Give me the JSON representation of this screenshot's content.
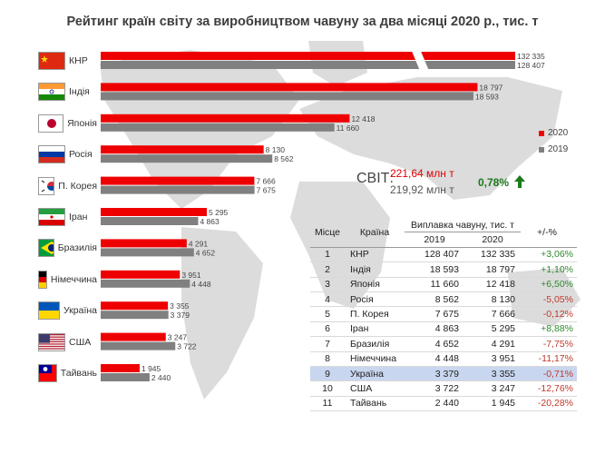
{
  "chart_data": {
    "type": "bar",
    "title": "Рейтинг країн світу за виробництвом чавуну за два місяці 2020 р., тис. т",
    "categories": [
      "КНР",
      "Індія",
      "Японія",
      "Росія",
      "П. Корея",
      "Іран",
      "Бразилія",
      "Німеччина",
      "Україна",
      "США",
      "Тайвань"
    ],
    "series": [
      {
        "name": "2020",
        "color": "#ee0000",
        "values": [
          132335,
          18797,
          12418,
          8130,
          7666,
          5295,
          4291,
          3951,
          3355,
          3247,
          1945
        ]
      },
      {
        "name": "2019",
        "color": "#808080",
        "values": [
          128407,
          18593,
          11660,
          8562,
          7675,
          4863,
          4652,
          4448,
          3379,
          3722,
          2440
        ]
      }
    ],
    "value_labels_2020": [
      "132 335",
      "18 797",
      "12 418",
      "8 130",
      "7 666",
      "5 295",
      "4 291",
      "3 951",
      "3 355",
      "3 247",
      "1 945"
    ],
    "value_labels_2019": [
      "128 407",
      "18 593",
      "11 660",
      "8 562",
      "7 675",
      "4 863",
      "4 652",
      "4 448",
      "3 379",
      "3 722",
      "2 440"
    ],
    "axis_break": true,
    "legend_position": "right",
    "flags": [
      "china-flag-icon",
      "india-flag-icon",
      "japan-flag-icon",
      "russia-flag-icon",
      "korea-flag-icon",
      "iran-flag-icon",
      "brazil-flag-icon",
      "germany-flag-icon",
      "ukraine-flag-icon",
      "usa-flag-icon",
      "taiwan-flag-icon"
    ]
  },
  "world": {
    "label": "СВІТ:",
    "value_2020": "221,64 млн т",
    "value_2019": "219,92 млн т",
    "change": "0,78%"
  },
  "table": {
    "headers": {
      "rank": "Місце",
      "country": "Країна",
      "output": "Виплавка чавуну, тис. т",
      "y2019": "2019",
      "y2020": "2020",
      "change": "+/-%"
    },
    "highlight_rank": "9",
    "rows": [
      {
        "rank": "1",
        "country": "КНР",
        "v2019": "128 407",
        "v2020": "132 335",
        "change": "+3,06%",
        "positive": true
      },
      {
        "rank": "2",
        "country": "Індія",
        "v2019": "18 593",
        "v2020": "18 797",
        "change": "+1,10%",
        "positive": true
      },
      {
        "rank": "3",
        "country": "Японія",
        "v2019": "11 660",
        "v2020": "12 418",
        "change": "+6,50%",
        "positive": true
      },
      {
        "rank": "4",
        "country": "Росія",
        "v2019": "8 562",
        "v2020": "8 130",
        "change": "-5,05%",
        "positive": false
      },
      {
        "rank": "5",
        "country": "П. Корея",
        "v2019": "7 675",
        "v2020": "7 666",
        "change": "-0,12%",
        "positive": false
      },
      {
        "rank": "6",
        "country": "Іран",
        "v2019": "4 863",
        "v2020": "5 295",
        "change": "+8,88%",
        "positive": true
      },
      {
        "rank": "7",
        "country": "Бразилія",
        "v2019": "4 652",
        "v2020": "4 291",
        "change": "-7,75%",
        "positive": false
      },
      {
        "rank": "8",
        "country": "Німеччина",
        "v2019": "4 448",
        "v2020": "3 951",
        "change": "-11,17%",
        "positive": false
      },
      {
        "rank": "9",
        "country": "Україна",
        "v2019": "3 379",
        "v2020": "3 355",
        "change": "-0,71%",
        "positive": false
      },
      {
        "rank": "10",
        "country": "США",
        "v2019": "3 722",
        "v2020": "3 247",
        "change": "-12,76%",
        "positive": false
      },
      {
        "rank": "11",
        "country": "Тайвань",
        "v2019": "2 440",
        "v2020": "1 945",
        "change": "-20,28%",
        "positive": false
      }
    ]
  }
}
